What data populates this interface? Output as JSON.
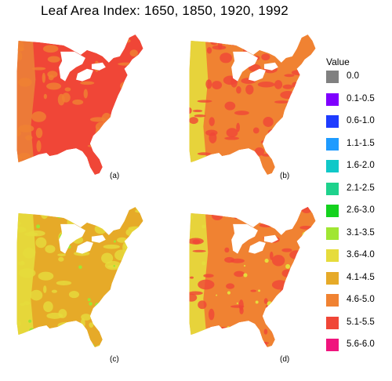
{
  "title": "Leaf Area Index:  1650, 1850, 1920, 1992",
  "panels": [
    {
      "label": "(a)",
      "year": "1650",
      "dominant_class": "5.1-5.5",
      "secondary_class": "4.6-5.0"
    },
    {
      "label": "(b)",
      "year": "1850",
      "dominant_class": "4.6-5.0",
      "secondary_class": "5.1-5.5"
    },
    {
      "label": "(c)",
      "year": "1920",
      "dominant_class": "4.1-4.5",
      "secondary_class": "3.6-4.0"
    },
    {
      "label": "(d)",
      "year": "1992",
      "dominant_class": "4.6-5.0",
      "secondary_class": "5.1-5.5"
    }
  ],
  "legend": {
    "title": "Value",
    "items": [
      {
        "label": "0.0",
        "color": "#808080"
      },
      {
        "label": "0.1-0.5",
        "color": "#7f00ff"
      },
      {
        "label": "0.6-1.0",
        "color": "#1e3cff"
      },
      {
        "label": "1.1-1.5",
        "color": "#1e9bff"
      },
      {
        "label": "1.6-2.0",
        "color": "#10c8c8"
      },
      {
        "label": "2.1-2.5",
        "color": "#1ed28c"
      },
      {
        "label": "2.6-3.0",
        "color": "#14d21e"
      },
      {
        "label": "3.1-3.5",
        "color": "#a0e632"
      },
      {
        "label": "3.6-4.0",
        "color": "#e6dc3c"
      },
      {
        "label": "4.1-4.5",
        "color": "#e6aa28"
      },
      {
        "label": "4.6-5.0",
        "color": "#f08232"
      },
      {
        "label": "5.1-5.5",
        "color": "#f04637"
      },
      {
        "label": "5.6-6.0",
        "color": "#f0147d"
      }
    ]
  }
}
